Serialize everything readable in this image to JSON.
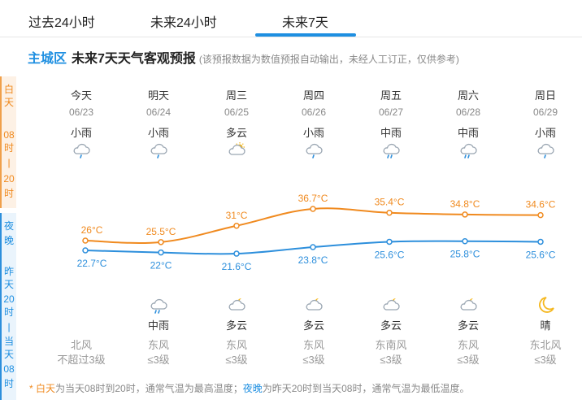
{
  "tabs": [
    {
      "label": "过去24小时"
    },
    {
      "label": "未来24小时"
    },
    {
      "label": "未来7天"
    }
  ],
  "title": {
    "city": "主城区",
    "main": "未来7天天气客观预报",
    "note": "(该预报数据为数值预报自动输出，未经人工订正，仅供参考)"
  },
  "side": {
    "day_chars": [
      "白",
      "天",
      "",
      "08",
      "时",
      "|",
      "20",
      "时"
    ],
    "night_chars": [
      "夜",
      "晚",
      "",
      "昨",
      "天",
      "20",
      "时",
      "|",
      "当",
      "天",
      "08",
      "时"
    ]
  },
  "days": [
    {
      "weekday": "今天",
      "date": "06/23",
      "day_cond": "小雨",
      "day_icon": "light-rain-icon",
      "high": "26°C",
      "low": "22.7°C",
      "night_cond": "",
      "night_icon": "",
      "wind_dir": "北风",
      "wind_level": "不超过3级"
    },
    {
      "weekday": "明天",
      "date": "06/24",
      "day_cond": "小雨",
      "day_icon": "light-rain-icon",
      "high": "25.5°C",
      "low": "22°C",
      "night_cond": "中雨",
      "night_icon": "moderate-rain-icon",
      "wind_dir": "东风",
      "wind_level": "≤3级"
    },
    {
      "weekday": "周三",
      "date": "06/25",
      "day_cond": "多云",
      "day_icon": "partly-cloudy-day-icon",
      "high": "31°C",
      "low": "21.6°C",
      "night_cond": "多云",
      "night_icon": "partly-cloudy-night-icon",
      "wind_dir": "东风",
      "wind_level": "≤3级"
    },
    {
      "weekday": "周四",
      "date": "06/26",
      "day_cond": "小雨",
      "day_icon": "light-rain-icon",
      "high": "36.7°C",
      "low": "23.8°C",
      "night_cond": "多云",
      "night_icon": "partly-cloudy-night-icon",
      "wind_dir": "东风",
      "wind_level": "≤3级"
    },
    {
      "weekday": "周五",
      "date": "06/27",
      "day_cond": "中雨",
      "day_icon": "moderate-rain-icon",
      "high": "35.4°C",
      "low": "25.6°C",
      "night_cond": "多云",
      "night_icon": "partly-cloudy-night-icon",
      "wind_dir": "东南风",
      "wind_level": "≤3级"
    },
    {
      "weekday": "周六",
      "date": "06/28",
      "day_cond": "中雨",
      "day_icon": "moderate-rain-icon",
      "high": "34.8°C",
      "low": "25.8°C",
      "night_cond": "多云",
      "night_icon": "partly-cloudy-night-icon",
      "wind_dir": "东风",
      "wind_level": "≤3级"
    },
    {
      "weekday": "周日",
      "date": "06/29",
      "day_cond": "小雨",
      "day_icon": "light-rain-icon",
      "high": "34.6°C",
      "low": "25.6°C",
      "night_cond": "晴",
      "night_icon": "clear-night-icon",
      "wind_dir": "东北风",
      "wind_level": "≤3级"
    }
  ],
  "chart_data": {
    "type": "line",
    "categories": [
      "06/23",
      "06/24",
      "06/25",
      "06/26",
      "06/27",
      "06/28",
      "06/29"
    ],
    "series": [
      {
        "values": [
          26,
          25.5,
          31,
          36.7,
          35.4,
          34.8,
          34.6
        ],
        "color": "#f08a1f"
      },
      {
        "values": [
          22.7,
          22,
          21.6,
          23.8,
          25.6,
          25.8,
          25.6
        ],
        "color": "#2d8fdc"
      }
    ]
  },
  "footnote": {
    "prefix": "* ",
    "day": "白天",
    "day_desc": "为当天08时到20时，通常气温为最高温度；",
    "night": "夜晚",
    "night_desc": "为昨天20时到当天08时，通常气温为最低温度。"
  },
  "colors": {
    "accent": "#1e8fe1",
    "day": "#f08a1f",
    "night": "#2d8fdc"
  }
}
